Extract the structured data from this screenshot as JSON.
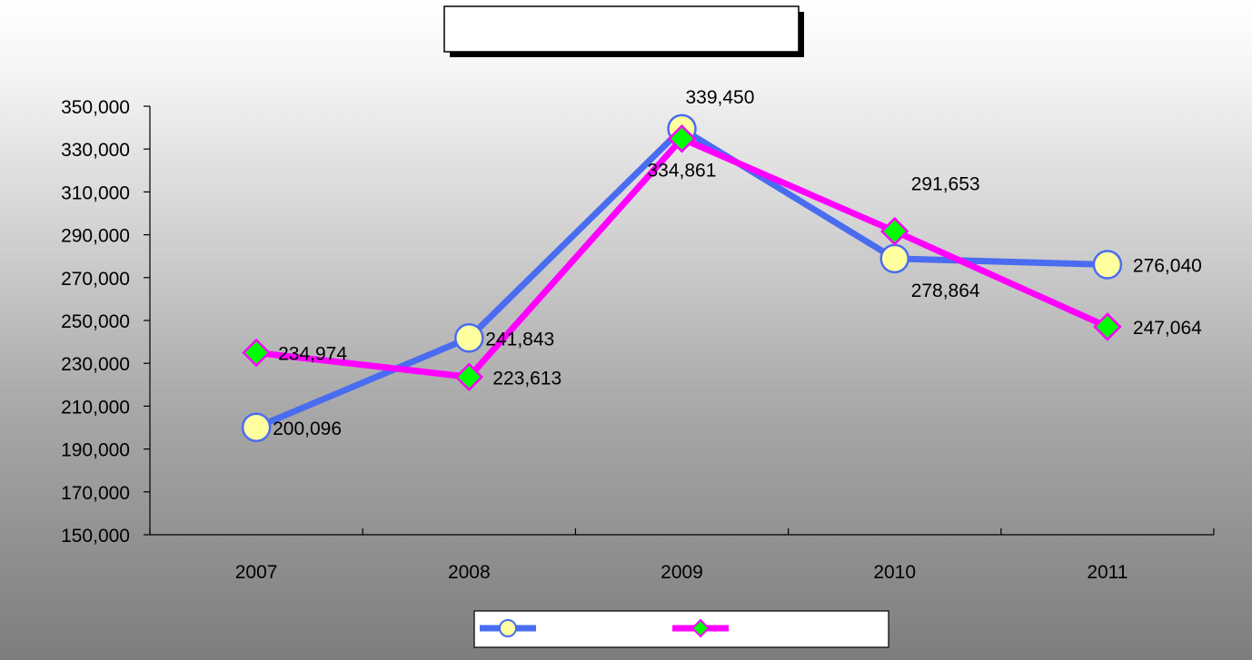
{
  "chart_data": {
    "type": "line",
    "title": "",
    "xlabel": "",
    "ylabel": "",
    "categories": [
      "2007",
      "2008",
      "2009",
      "2010",
      "2011"
    ],
    "ylim": [
      150000,
      350000
    ],
    "y_ticks": [
      150000,
      170000,
      190000,
      210000,
      230000,
      250000,
      270000,
      290000,
      310000,
      330000,
      350000
    ],
    "y_tick_labels": [
      "150,000",
      "170,000",
      "190,000",
      "210,000",
      "230,000",
      "250,000",
      "270,000",
      "290,000",
      "310,000",
      "330,000",
      "350,000"
    ],
    "grid": false,
    "legend": "bottom",
    "series": [
      {
        "values": [
          200096,
          241843,
          339450,
          278864,
          276040
        ],
        "labels": [
          "200,096",
          "241,843",
          "339,450",
          "278,864",
          "276,040"
        ],
        "color": "#4a6cf0",
        "marker": "circle",
        "marker_color": "#ffffa0"
      },
      {
        "values": [
          234974,
          223613,
          334861,
          291653,
          247064
        ],
        "labels": [
          "234,974",
          "223,613",
          "334,861",
          "291,653",
          "247,064"
        ],
        "color": "#ff00ff",
        "marker": "diamond",
        "marker_color": "#00ff00"
      }
    ]
  }
}
